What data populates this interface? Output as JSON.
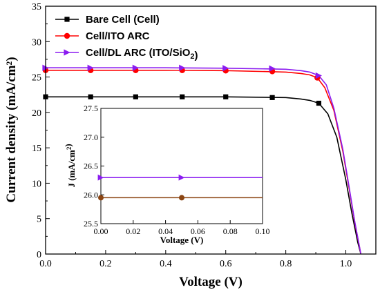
{
  "chart_data": [
    {
      "type": "line",
      "xlabel": "Voltage (V)",
      "ylabel": "Current density (mA/cm²)",
      "xlim": [
        0.0,
        1.1
      ],
      "ylim": [
        0,
        35
      ],
      "xticks": [
        "0.0",
        "0.2",
        "0.4",
        "0.6",
        "0.8",
        "1.0"
      ],
      "xtick_values": [
        0.0,
        0.2,
        0.4,
        0.6,
        0.8,
        1.0
      ],
      "yticks": [
        "0",
        "5",
        "10",
        "15",
        "20",
        "25",
        "30",
        "35"
      ],
      "ytick_values": [
        0,
        5,
        10,
        15,
        20,
        25,
        30,
        35
      ],
      "grid": false,
      "legend_position": "top-left",
      "series": [
        {
          "name": "Bare Cell (Cell)",
          "legend_parts": [
            {
              "text": "Bare Cell (Cell)",
              "sub": false
            }
          ],
          "color": "#000000",
          "marker": "square",
          "x": [
            0.0,
            0.15,
            0.3,
            0.455,
            0.6,
            0.755,
            0.91
          ],
          "y": [
            22.2,
            22.2,
            22.2,
            22.2,
            22.2,
            22.1,
            21.3
          ],
          "curve_x": [
            0.0,
            0.2,
            0.4,
            0.6,
            0.8,
            0.85,
            0.88,
            0.91,
            0.94,
            0.97,
            1.0,
            1.02,
            1.04,
            1.05
          ],
          "curve_y": [
            22.2,
            22.2,
            22.2,
            22.2,
            22.1,
            21.9,
            21.7,
            21.3,
            19.8,
            16.5,
            10.5,
            5.8,
            1.6,
            0
          ]
        },
        {
          "name": "Cell/ITO ARC",
          "legend_parts": [
            {
              "text": "Cell/ITO ARC",
              "sub": false
            }
          ],
          "color": "#ff0000",
          "marker": "circle",
          "x": [
            0.0,
            0.15,
            0.3,
            0.455,
            0.6,
            0.755,
            0.905
          ],
          "y": [
            25.95,
            25.95,
            25.95,
            25.95,
            25.9,
            25.8,
            24.9
          ],
          "curve_x": [
            0.0,
            0.2,
            0.4,
            0.6,
            0.8,
            0.85,
            0.88,
            0.905,
            0.93,
            0.96,
            0.99,
            1.01,
            1.03,
            1.05
          ],
          "curve_y": [
            25.95,
            25.95,
            25.95,
            25.9,
            25.7,
            25.5,
            25.3,
            24.9,
            23.5,
            20.3,
            14.5,
            9.5,
            4.4,
            0
          ]
        },
        {
          "name": "Cell/DL ARC (ITO/SiO2)",
          "legend_parts": [
            {
              "text": "Cell/DL ARC (ITO/SiO",
              "sub": false
            },
            {
              "text": "2",
              "sub": true
            },
            {
              "text": ")",
              "sub": false
            }
          ],
          "color": "#8b1cf0",
          "marker": "triangle-right",
          "x": [
            0.0,
            0.15,
            0.3,
            0.455,
            0.6,
            0.755,
            0.91
          ],
          "y": [
            26.3,
            26.3,
            26.3,
            26.3,
            26.25,
            26.2,
            25.2
          ],
          "curve_x": [
            0.0,
            0.2,
            0.4,
            0.6,
            0.8,
            0.85,
            0.88,
            0.91,
            0.935,
            0.96,
            0.99,
            1.01,
            1.03,
            1.05
          ],
          "curve_y": [
            26.3,
            26.3,
            26.3,
            26.25,
            26.1,
            25.9,
            25.7,
            25.2,
            23.9,
            20.6,
            14.8,
            9.7,
            4.5,
            0
          ]
        }
      ]
    },
    {
      "type": "line",
      "role": "inset",
      "xlabel": "Voltage (V)",
      "ylabel_parts": [
        {
          "text": "J (mA/cm",
          "sup": false
        },
        {
          "text": "2",
          "sup": true
        },
        {
          "text": ")",
          "sup": false
        }
      ],
      "xlim": [
        0.0,
        0.1
      ],
      "ylim": [
        25.5,
        27.5
      ],
      "xticks": [
        "0.00",
        "0.02",
        "0.04",
        "0.06",
        "0.08",
        "0.10"
      ],
      "xtick_values": [
        0.0,
        0.02,
        0.04,
        0.06,
        0.08,
        0.1
      ],
      "yticks": [
        "25.5",
        "26.0",
        "26.5",
        "27.0",
        "27.5"
      ],
      "ytick_values": [
        25.5,
        26.0,
        26.5,
        27.0,
        27.5
      ],
      "series": [
        {
          "color": "#8b1cf0",
          "marker": "triangle-right",
          "x": [
            0.0,
            0.05,
            0.1
          ],
          "y": [
            26.3,
            26.3,
            26.3
          ],
          "marker_x": [
            0.0,
            0.05
          ]
        },
        {
          "color": "#8b4513",
          "marker": "circle",
          "x": [
            0.0,
            0.05,
            0.1
          ],
          "y": [
            25.95,
            25.95,
            25.95
          ],
          "marker_x": [
            0.0,
            0.05
          ]
        }
      ]
    }
  ]
}
